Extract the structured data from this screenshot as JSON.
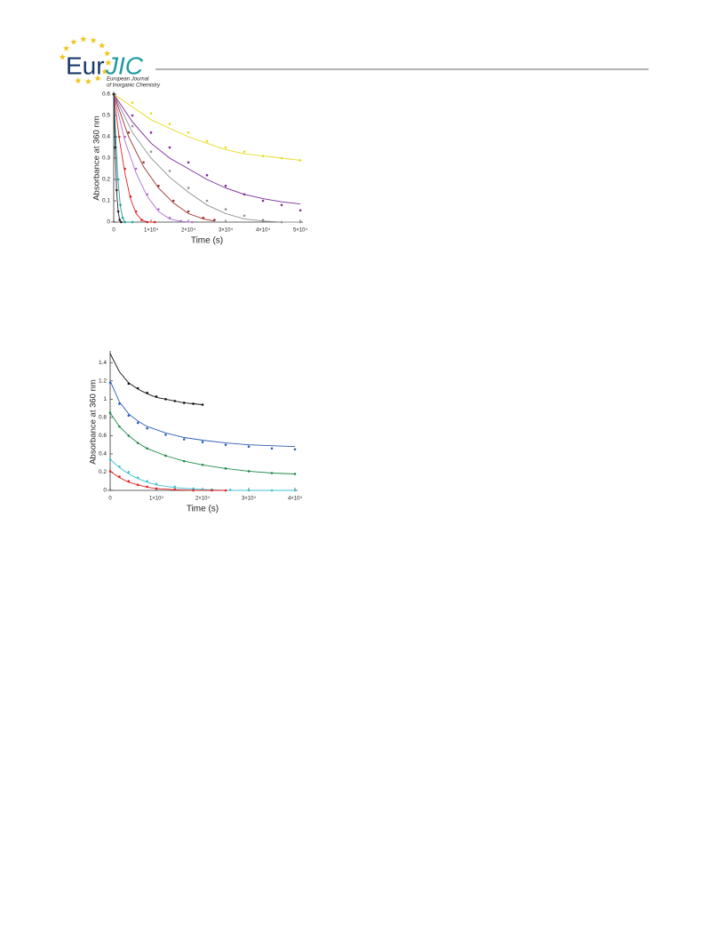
{
  "header": {
    "logo_left": "Eur",
    "logo_right": "JIC",
    "journal_line1": "European Journal",
    "journal_line2": "of Inorganic Chemistry"
  },
  "chart_data": [
    {
      "type": "scatter",
      "xlabel": "Time (s)",
      "ylabel": "Absorbance at 360 nm",
      "xlim": [
        0,
        50000
      ],
      "ylim": [
        0,
        0.6
      ],
      "xticks": [
        0,
        {
          "value": 10000,
          "label": "1×10⁴"
        },
        {
          "value": 20000,
          "label": "2×10⁴"
        },
        {
          "value": 30000,
          "label": "3×10⁴"
        },
        {
          "value": 40000,
          "label": "4×10⁴"
        },
        {
          "value": 50000,
          "label": "5×10⁴"
        }
      ],
      "yticks": [
        0,
        0.1,
        0.2,
        0.3,
        0.4,
        0.5,
        0.6
      ],
      "grid": false,
      "series": [
        {
          "color": "#e6dc1e",
          "x": [
            0,
            5000,
            10000,
            15000,
            20000,
            25000,
            30000,
            35000,
            40000,
            45000,
            50000
          ],
          "values": [
            0.6,
            0.56,
            0.51,
            0.46,
            0.42,
            0.38,
            0.35,
            0.33,
            0.31,
            0.3,
            0.29
          ],
          "fit": [
            0.6,
            0.54,
            0.48,
            0.44,
            0.4,
            0.37,
            0.34,
            0.32,
            0.31,
            0.3,
            0.29
          ]
        },
        {
          "color": "#7a2a9a",
          "x": [
            0,
            5000,
            10000,
            15000,
            20000,
            25000,
            30000,
            35000,
            40000,
            45000,
            50000
          ],
          "values": [
            0.6,
            0.5,
            0.42,
            0.35,
            0.28,
            0.22,
            0.17,
            0.13,
            0.1,
            0.08,
            0.055
          ],
          "fit": [
            0.6,
            0.47,
            0.37,
            0.3,
            0.25,
            0.2,
            0.16,
            0.13,
            0.11,
            0.095,
            0.085
          ]
        },
        {
          "color": "#909090",
          "x": [
            0,
            5000,
            10000,
            15000,
            20000,
            25000,
            30000,
            35000,
            40000,
            45000,
            50000
          ],
          "values": [
            0.6,
            0.45,
            0.33,
            0.24,
            0.16,
            0.1,
            0.06,
            0.03,
            0.01,
            0,
            0
          ],
          "fit": [
            0.6,
            0.42,
            0.3,
            0.21,
            0.14,
            0.08,
            0.04,
            0.015,
            0.005,
            0,
            0
          ]
        },
        {
          "color": "#a03030",
          "x": [
            0,
            4000,
            8000,
            12000,
            16000,
            20000,
            24000,
            27000
          ],
          "values": [
            0.6,
            0.42,
            0.28,
            0.17,
            0.1,
            0.05,
            0.02,
            0.01
          ],
          "fit": [
            0.6,
            0.4,
            0.26,
            0.16,
            0.09,
            0.04,
            0.015,
            0.005
          ]
        },
        {
          "color": "#b070d0",
          "x": [
            0,
            3000,
            6000,
            9000,
            12000,
            15000,
            18000,
            21000
          ],
          "values": [
            0.6,
            0.4,
            0.25,
            0.13,
            0.06,
            0.02,
            0.005,
            0
          ],
          "fit": [
            0.6,
            0.38,
            0.23,
            0.12,
            0.05,
            0.015,
            0.003,
            0
          ]
        },
        {
          "color": "#e02020",
          "x": [
            0,
            1500,
            3000,
            4500,
            6000,
            7500,
            9000,
            11000
          ],
          "values": [
            0.6,
            0.4,
            0.25,
            0.12,
            0.05,
            0.01,
            0,
            0
          ],
          "fit": [
            0.6,
            0.39,
            0.23,
            0.11,
            0.04,
            0.01,
            0,
            0
          ]
        },
        {
          "color": "#20a0a0",
          "x": [
            0,
            600,
            1200,
            1800,
            2400,
            3000,
            5000
          ],
          "values": [
            0.6,
            0.4,
            0.2,
            0.08,
            0.02,
            0,
            0
          ],
          "fit": [
            0.6,
            0.38,
            0.19,
            0.07,
            0.02,
            0,
            0
          ]
        },
        {
          "color": "#222222",
          "x": [
            0,
            400,
            800,
            1200,
            1600,
            2000
          ],
          "values": [
            0.6,
            0.35,
            0.15,
            0.05,
            0.01,
            0
          ],
          "fit": [
            0.6,
            0.33,
            0.14,
            0.05,
            0.01,
            0
          ]
        }
      ]
    },
    {
      "type": "scatter",
      "xlabel": "Time (s)",
      "ylabel": "Absorbance at 360 nm",
      "xlim": [
        0,
        40000
      ],
      "ylim": [
        0,
        1.5
      ],
      "xticks": [
        0,
        {
          "value": 10000,
          "label": "1×10⁴"
        },
        {
          "value": 20000,
          "label": "2×10⁴"
        },
        {
          "value": 30000,
          "label": "3×10⁴"
        },
        {
          "value": 40000,
          "label": "4×10⁴"
        }
      ],
      "yticks": [
        0,
        0.2,
        0.4,
        0.6,
        0.8,
        1,
        1.2,
        1.4
      ],
      "grid": false,
      "series": [
        {
          "color": "#111111",
          "x": [
            0,
            2000,
            4000,
            6000,
            8000,
            10000,
            12000,
            14000,
            16000,
            18000,
            20000
          ],
          "values": [
            null,
            null,
            1.17,
            1.12,
            1.07,
            1.03,
            1.0,
            0.98,
            0.96,
            0.95,
            0.94
          ],
          "fit": [
            1.5,
            1.3,
            1.18,
            1.11,
            1.06,
            1.02,
            1.0,
            0.98,
            0.96,
            0.95,
            0.94
          ]
        },
        {
          "color": "#2a5cb8",
          "x": [
            0,
            2000,
            4000,
            6000,
            8000,
            12000,
            16000,
            20000,
            25000,
            30000,
            35000,
            40000
          ],
          "values": [
            1.18,
            0.95,
            0.82,
            0.74,
            0.68,
            0.61,
            0.56,
            0.53,
            0.5,
            0.48,
            0.46,
            0.45
          ],
          "fit": [
            1.2,
            0.97,
            0.84,
            0.76,
            0.7,
            0.63,
            0.58,
            0.55,
            0.52,
            0.5,
            0.49,
            0.48
          ]
        },
        {
          "color": "#1f8a4c",
          "x": [
            0,
            2000,
            4000,
            6000,
            8000,
            12000,
            16000,
            20000,
            25000,
            30000,
            35000,
            40000
          ],
          "values": [
            0.85,
            0.7,
            0.6,
            0.52,
            0.46,
            0.38,
            0.32,
            0.28,
            0.24,
            0.21,
            0.19,
            0.18
          ],
          "fit": [
            0.85,
            0.7,
            0.6,
            0.52,
            0.46,
            0.38,
            0.32,
            0.28,
            0.24,
            0.21,
            0.19,
            0.18
          ]
        },
        {
          "color": "#40c0d0",
          "x": [
            0,
            2000,
            4000,
            6000,
            8000,
            10000,
            14000,
            18000,
            22000,
            26000,
            30000,
            35000,
            40000
          ],
          "values": [
            0.34,
            0.26,
            0.2,
            0.14,
            0.1,
            0.07,
            0.04,
            0.02,
            0.01,
            0.005,
            0,
            0,
            0
          ],
          "fit": [
            0.34,
            0.25,
            0.18,
            0.13,
            0.09,
            0.06,
            0.03,
            0.015,
            0.005,
            0,
            0,
            0,
            0
          ]
        },
        {
          "color": "#e02020",
          "x": [
            0,
            2000,
            4000,
            6000,
            8000,
            10000,
            14000,
            18000,
            22000,
            25000
          ],
          "values": [
            0.21,
            0.15,
            0.1,
            0.06,
            0.04,
            0.02,
            0.01,
            0,
            0,
            0
          ],
          "fit": [
            0.21,
            0.14,
            0.09,
            0.06,
            0.035,
            0.02,
            0.008,
            0,
            0,
            0
          ]
        }
      ]
    }
  ]
}
